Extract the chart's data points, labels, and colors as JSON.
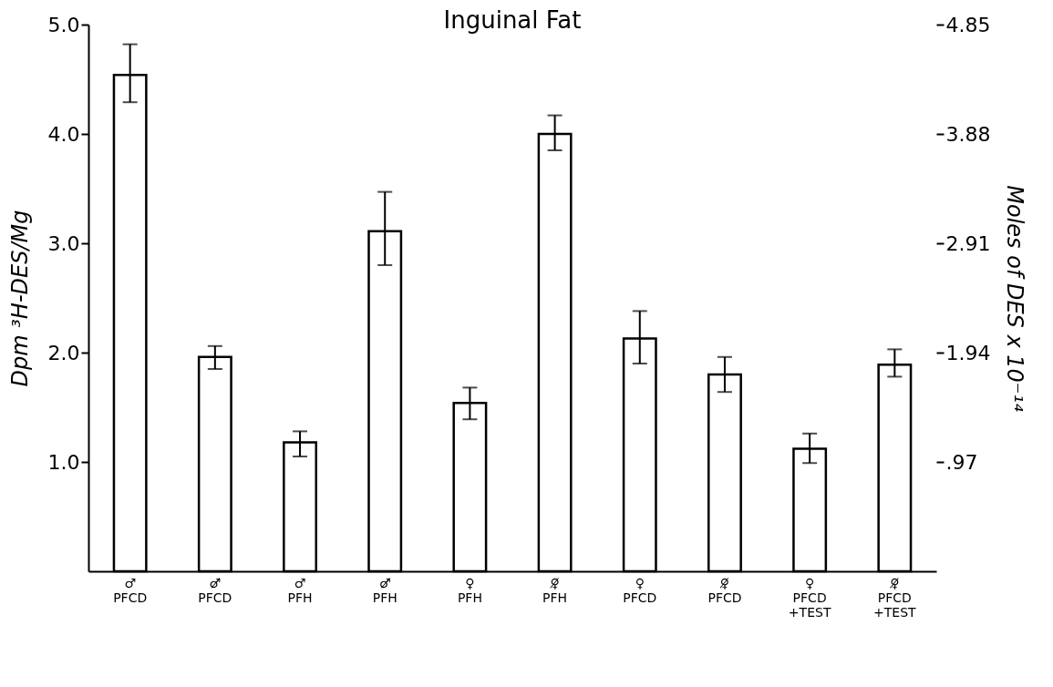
{
  "chart_data": {
    "type": "bar",
    "title": "Inguinal Fat",
    "ylabel": "Dpm ³H-DES/Mg",
    "y2label": "Moles of DES x 10⁻¹⁴",
    "categories": [
      "♂\nPFCD",
      "♂̸\nPFCD",
      "♂\nPFH",
      "♂̸\nPFH",
      "♀\nPFH",
      "♀̸\nPFH",
      "♀\nPFCD",
      "♀̸\nPFCD",
      "♀\nPFCD\n+TEST",
      "♀̸\nPFCD\n+TEST"
    ],
    "values": [
      4.54,
      1.96,
      1.18,
      3.11,
      1.54,
      4.0,
      2.13,
      1.8,
      1.12,
      1.89
    ],
    "errors": [
      [
        4.29,
        4.82
      ],
      [
        1.85,
        2.06
      ],
      [
        1.05,
        1.28
      ],
      [
        2.8,
        3.47
      ],
      [
        1.39,
        1.68
      ],
      [
        3.85,
        4.17
      ],
      [
        1.9,
        2.38
      ],
      [
        1.64,
        1.96
      ],
      [
        0.99,
        1.26
      ],
      [
        1.78,
        2.03
      ]
    ],
    "color": "#ffffff",
    "ylim": [
      0,
      5.0
    ],
    "yticks": [
      {
        "value": 1,
        "label": "1.0"
      },
      {
        "value": 2,
        "label": "2.0"
      },
      {
        "value": 3,
        "label": "3.0"
      },
      {
        "value": 4,
        "label": "4.0"
      },
      {
        "value": 5,
        "label": "5.0"
      }
    ],
    "y2lim": [
      0,
      4.85
    ],
    "y2ticks": [
      {
        "value": 0.97,
        "label": ".97"
      },
      1.94,
      2.91,
      3.88,
      4.85
    ],
    "grid": false
  }
}
